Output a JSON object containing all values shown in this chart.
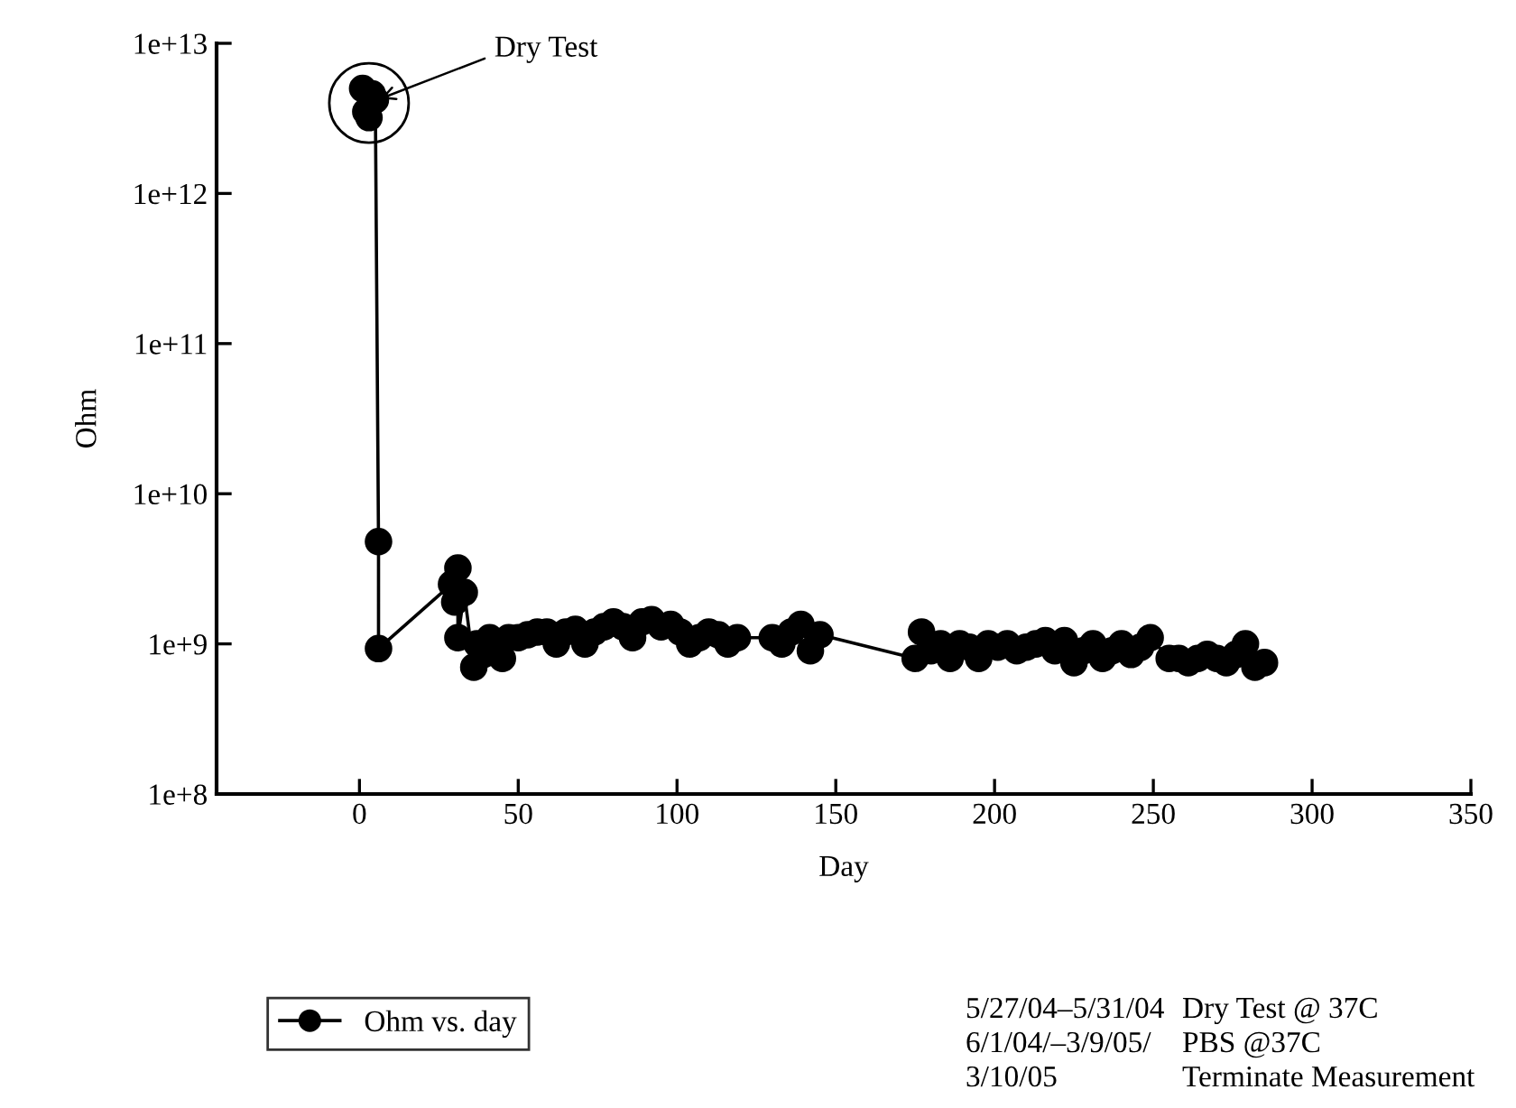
{
  "chart_data": {
    "type": "line",
    "xlabel": "Day",
    "ylabel": "Ohm",
    "x": [
      1,
      2,
      3,
      4,
      5,
      6,
      6,
      29,
      30,
      31,
      31,
      33,
      36,
      37,
      39,
      41,
      43,
      45,
      47,
      50,
      53,
      56,
      59,
      62,
      65,
      68,
      71,
      74,
      77,
      80,
      83,
      86,
      89,
      92,
      95,
      98,
      101,
      104,
      107,
      110,
      113,
      116,
      119,
      130,
      133,
      136,
      139,
      142,
      145,
      175,
      177,
      180,
      183,
      186,
      189,
      192,
      195,
      198,
      201,
      204,
      207,
      210,
      213,
      216,
      219,
      222,
      225,
      228,
      231,
      234,
      237,
      240,
      243,
      246,
      249,
      255,
      258,
      261,
      264,
      267,
      270,
      273,
      276,
      279,
      282,
      285
    ],
    "series": [
      {
        "name": "Ohm vs. day",
        "color": "#000000",
        "values": [
          5000000000000.0,
          3500000000000.0,
          3200000000000.0,
          4600000000000.0,
          4200000000000.0,
          4800000000.0,
          930000000.0,
          2500000000.0,
          1900000000.0,
          3200000000.0,
          1100000000.0,
          2200000000.0,
          700000000.0,
          1000000000.0,
          850000000.0,
          1100000000.0,
          900000000.0,
          800000000.0,
          1100000000.0,
          1100000000.0,
          1150000000.0,
          1200000000.0,
          1200000000.0,
          1000000000.0,
          1200000000.0,
          1250000000.0,
          1000000000.0,
          1200000000.0,
          1300000000.0,
          1400000000.0,
          1300000000.0,
          1100000000.0,
          1400000000.0,
          1450000000.0,
          1300000000.0,
          1350000000.0,
          1200000000.0,
          1000000000.0,
          1100000000.0,
          1200000000.0,
          1150000000.0,
          1000000000.0,
          1100000000.0,
          1100000000.0,
          1000000000.0,
          1200000000.0,
          1350000000.0,
          900000000.0,
          1150000000.0,
          800000000.0,
          1200000000.0,
          900000000.0,
          1000000000.0,
          800000000.0,
          1000000000.0,
          950000000.0,
          800000000.0,
          1000000000.0,
          950000000.0,
          1000000000.0,
          900000000.0,
          950000000.0,
          1000000000.0,
          1050000000.0,
          900000000.0,
          1050000000.0,
          750000000.0,
          900000000.0,
          1000000000.0,
          800000000.0,
          900000000.0,
          1000000000.0,
          850000000.0,
          950000000.0,
          1100000000.0,
          800000000.0,
          800000000.0,
          750000000.0,
          800000000.0,
          850000000.0,
          800000000.0,
          750000000.0,
          850000000.0,
          1000000000.0,
          700000000.0,
          750000000.0
        ]
      }
    ],
    "log": "y",
    "xlim": [
      -45,
      350
    ],
    "xticks": [
      0,
      50,
      100,
      150,
      200,
      250,
      300,
      350
    ],
    "ylim": [
      100000000.0,
      10000000000000.0
    ],
    "yticks": [
      {
        "value": 100000000.0,
        "label": "1e+8"
      },
      {
        "value": 1000000000.0,
        "label": "1e+9"
      },
      {
        "value": 10000000000.0,
        "label": "1e+10"
      },
      {
        "value": 100000000000.0,
        "label": "1e+11"
      },
      {
        "value": 1000000000000.0,
        "label": "1e+12"
      },
      {
        "value": 10000000000000.0,
        "label": "1e+13"
      }
    ],
    "grid": false,
    "legend": "bottom left",
    "marker": "circle",
    "line_style": "solid",
    "annotations": [
      {
        "text": "Dry Test",
        "x": 3,
        "y": 4000000000000.0
      },
      "5/27/04–5/31/04",
      "Dry Test @ 37C",
      "6/1/04/–3/9/05/",
      "PBS @37C",
      "3/10/05",
      "Terminate Measurement"
    ]
  }
}
